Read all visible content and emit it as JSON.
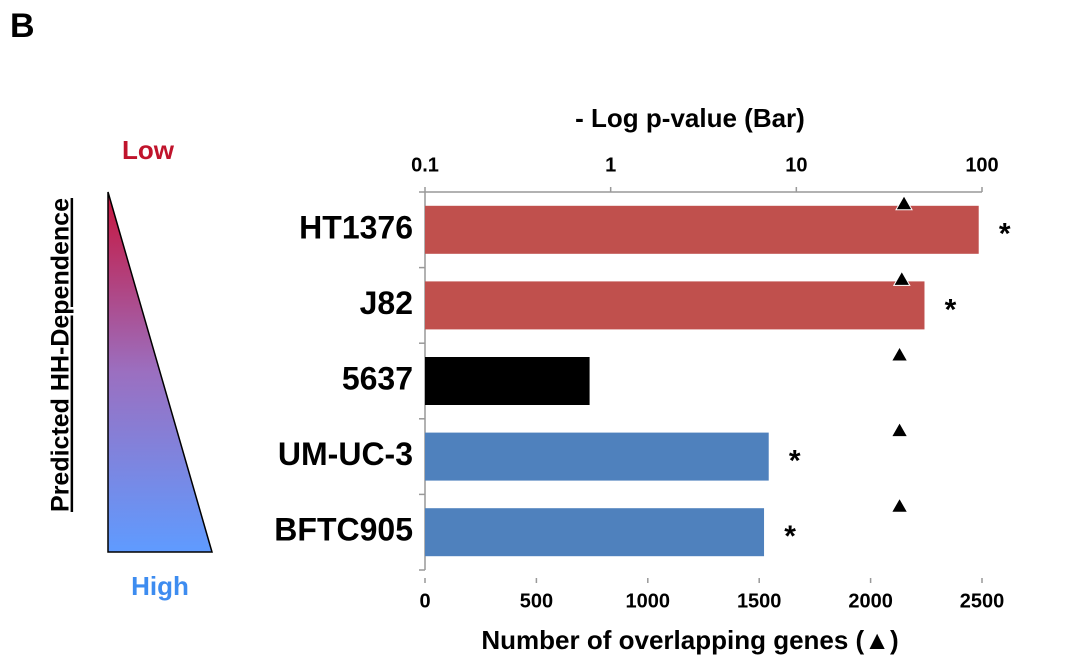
{
  "panel_label": "B",
  "gradient": {
    "title": "Predicted HH-Dependence",
    "low": "Low",
    "high": "High"
  },
  "chart_data": {
    "type": "bar",
    "orientation": "horizontal",
    "title": "- Log p-value (Bar)",
    "x2label": "Number of overlapping genes (▲)",
    "categories": [
      "HT1376",
      "J82",
      "5637",
      "UM-UC-3",
      "BFTC905"
    ],
    "values": [
      96,
      49,
      0.77,
      7.1,
      6.7
    ],
    "colors": [
      "#c0504d",
      "#c0504d",
      "#000000",
      "#4f81bd",
      "#4f81bd"
    ],
    "annotations": [
      "*",
      "*",
      null,
      "*",
      "*"
    ],
    "xscale": "log",
    "xlim": [
      0.1,
      100
    ],
    "xticks": [
      0.1,
      1,
      10,
      100
    ],
    "overlap_counts": [
      2150,
      2140,
      2130,
      2130,
      2130
    ],
    "x2lim": [
      0,
      2500
    ],
    "x2ticks": [
      0,
      500,
      1000,
      1500,
      2000,
      2500
    ]
  }
}
